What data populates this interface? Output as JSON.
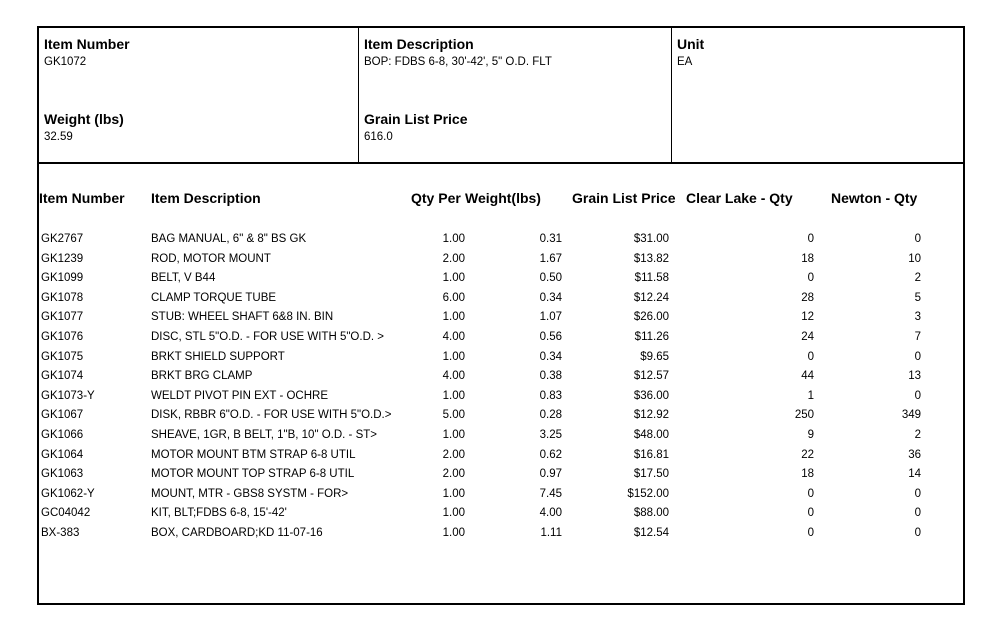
{
  "panel": {
    "item_number": {
      "label": "Item Number",
      "value": "GK1072"
    },
    "item_description": {
      "label": "Item Description",
      "value": "BOP: FDBS 6-8, 30'-42', 5\" O.D. FLT"
    },
    "unit": {
      "label": "Unit",
      "value": "EA"
    },
    "weight": {
      "label": "Weight (lbs)",
      "value": "32.59"
    },
    "grain_list_price": {
      "label": "Grain List Price",
      "value": "616.0"
    }
  },
  "table": {
    "columns": [
      "Item Number",
      "Item Description",
      "Qty Per",
      "Weight(lbs)",
      "Grain List Price",
      "Clear Lake - Qty",
      "Newton - Qty"
    ],
    "rows": [
      [
        "GK2767",
        "BAG MANUAL, 6\" & 8\" BS GK",
        "1.00",
        "0.31",
        "$31.00",
        "0",
        "0"
      ],
      [
        "GK1239",
        "ROD, MOTOR MOUNT",
        "2.00",
        "1.67",
        "$13.82",
        "18",
        "10"
      ],
      [
        "GK1099",
        "BELT, V B44",
        "1.00",
        "0.50",
        "$11.58",
        "0",
        "2"
      ],
      [
        "GK1078",
        "CLAMP TORQUE TUBE",
        "6.00",
        "0.34",
        "$12.24",
        "28",
        "5"
      ],
      [
        "GK1077",
        "STUB: WHEEL SHAFT 6&8 IN. BIN",
        "1.00",
        "1.07",
        "$26.00",
        "12",
        "3"
      ],
      [
        "GK1076",
        "DISC, STL 5\"O.D. - FOR USE WITH 5\"O.D. >",
        "4.00",
        "0.56",
        "$11.26",
        "24",
        "7"
      ],
      [
        "GK1075",
        "BRKT SHIELD SUPPORT",
        "1.00",
        "0.34",
        "$9.65",
        "0",
        "0"
      ],
      [
        "GK1074",
        "BRKT BRG CLAMP",
        "4.00",
        "0.38",
        "$12.57",
        "44",
        "13"
      ],
      [
        "GK1073-Y",
        "WELDT PIVOT PIN EXT - OCHRE",
        "1.00",
        "0.83",
        "$36.00",
        "1",
        "0"
      ],
      [
        "GK1067",
        "DISK, RBBR 6\"O.D. - FOR USE WITH 5\"O.D.>",
        "5.00",
        "0.28",
        "$12.92",
        "250",
        "349"
      ],
      [
        "GK1066",
        "SHEAVE, 1GR, B BELT, 1\"B, 10\" O.D. - ST>",
        "1.00",
        "3.25",
        "$48.00",
        "9",
        "2"
      ],
      [
        "GK1064",
        "MOTOR MOUNT BTM STRAP 6-8 UTIL",
        "2.00",
        "0.62",
        "$16.81",
        "22",
        "36"
      ],
      [
        "GK1063",
        "MOTOR MOUNT TOP STRAP 6-8 UTIL",
        "2.00",
        "0.97",
        "$17.50",
        "18",
        "14"
      ],
      [
        "GK1062-Y",
        "MOUNT, MTR - GBS8 SYSTM - FOR>",
        "1.00",
        "7.45",
        "$152.00",
        "0",
        "0"
      ],
      [
        "GC04042",
        "KIT, BLT;FDBS 6-8, 15'-42'",
        "1.00",
        "4.00",
        "$88.00",
        "0",
        "0"
      ],
      [
        "BX-383",
        "BOX, CARDBOARD;KD 11-07-16",
        "1.00",
        "1.11",
        "$12.54",
        "0",
        "0"
      ]
    ]
  },
  "colors": {
    "border": "#000000",
    "text": "#000000",
    "background": "#ffffff"
  }
}
